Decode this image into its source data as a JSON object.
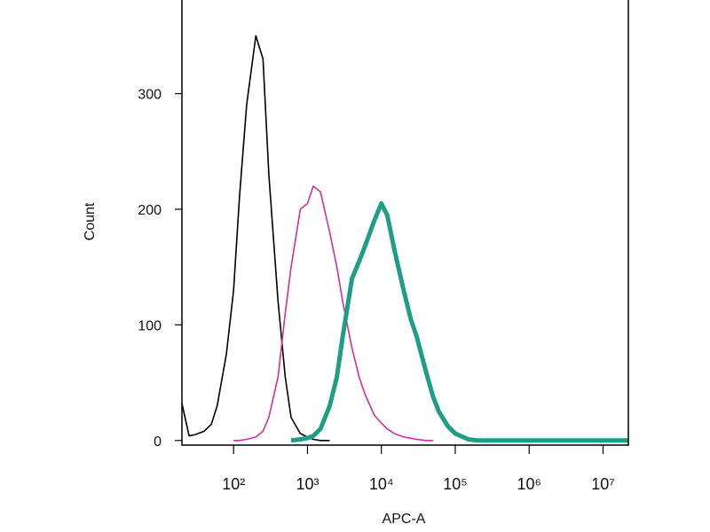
{
  "chart_data": {
    "type": "line",
    "xlabel": "APC-A",
    "ylabel": "Count",
    "xscale": "log",
    "x": [
      20,
      25,
      30,
      40,
      50,
      60,
      80,
      100,
      120,
      150,
      200,
      250,
      300,
      400,
      500,
      600,
      800,
      1000,
      1200,
      1500,
      2000,
      2500,
      3000,
      4000,
      5000,
      6000,
      8000,
      10000,
      12000,
      15000,
      20000,
      25000,
      30000,
      40000,
      50000,
      60000,
      80000,
      100000,
      150000,
      200000,
      500000,
      1000000,
      10000000,
      22000000
    ],
    "series": [
      {
        "color": "#000000",
        "width": 1.6,
        "values": [
          32,
          4,
          5,
          8,
          14,
          30,
          75,
          130,
          210,
          290,
          350,
          330,
          230,
          120,
          55,
          20,
          6,
          3,
          1,
          0,
          0,
          null,
          null,
          null,
          null,
          null,
          null,
          null,
          null,
          null,
          null,
          null,
          null,
          null,
          null,
          null,
          null,
          null,
          null,
          null,
          null,
          null,
          null,
          null
        ]
      },
      {
        "color": "#d12f9c",
        "width": 1.6,
        "values": [
          null,
          null,
          null,
          null,
          null,
          null,
          null,
          0,
          0,
          1,
          3,
          8,
          20,
          55,
          110,
          150,
          200,
          205,
          220,
          215,
          180,
          150,
          120,
          80,
          55,
          40,
          22,
          15,
          10,
          6,
          3,
          2,
          1,
          0,
          0,
          null,
          null,
          null,
          null,
          null,
          null,
          null,
          null,
          null
        ]
      },
      {
        "color": "#1f9e87",
        "width": 5,
        "values": [
          null,
          null,
          null,
          null,
          null,
          null,
          null,
          null,
          null,
          null,
          null,
          null,
          null,
          null,
          null,
          0,
          1,
          2,
          4,
          10,
          30,
          55,
          90,
          140,
          155,
          168,
          190,
          205,
          195,
          165,
          130,
          105,
          90,
          60,
          38,
          25,
          12,
          6,
          1,
          0,
          0,
          0,
          0,
          0
        ]
      }
    ],
    "xlim": [
      20,
      22000000
    ],
    "xticks": [
      {
        "value": 100,
        "label": "10²"
      },
      {
        "value": 1000,
        "label": "10³"
      },
      {
        "value": 10000,
        "label": "10⁴"
      },
      {
        "value": 100000,
        "label": "10⁵"
      },
      {
        "value": 1000000,
        "label": "10⁶"
      },
      {
        "value": 10000000,
        "label": "10⁷"
      }
    ],
    "ylim": [
      -4,
      381
    ],
    "yticks": [
      0,
      100,
      200,
      300
    ],
    "grid": false
  }
}
